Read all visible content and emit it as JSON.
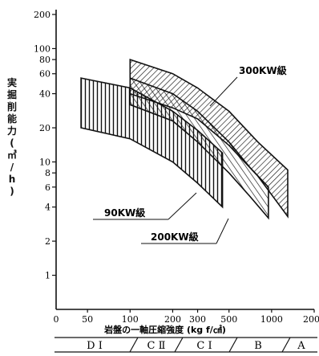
{
  "chart_data": {
    "type": "area",
    "title": "",
    "ylabel_chars": [
      "実",
      "掘",
      "削",
      "能",
      "力",
      "(",
      "㎥",
      "/",
      "h",
      ")"
    ],
    "xlabel": "岩盤の一軸圧縮強度 (kg f/㎠)",
    "x_scale": "log",
    "y_scale": "log",
    "xlim": [
      30,
      2000
    ],
    "ylim": [
      0.5,
      200
    ],
    "x_ticks": [
      {
        "v": 50,
        "label": "50"
      },
      {
        "v": 100,
        "label": "100"
      },
      {
        "v": 200,
        "label": "200"
      },
      {
        "v": 300,
        "label": "300"
      },
      {
        "v": 500,
        "label": "500"
      },
      {
        "v": 1000,
        "label": "1000"
      },
      {
        "v": 2000,
        "label": "2000"
      }
    ],
    "x_origin_label": "0",
    "y_ticks": [
      {
        "v": 1,
        "label": "1"
      },
      {
        "v": 2,
        "label": "2"
      },
      {
        "v": 4,
        "label": "4"
      },
      {
        "v": 6,
        "label": "6"
      },
      {
        "v": 8,
        "label": "8"
      },
      {
        "v": 10,
        "label": "10"
      },
      {
        "v": 20,
        "label": "20"
      },
      {
        "v": 40,
        "label": "40"
      },
      {
        "v": 60,
        "label": "60"
      },
      {
        "v": 80,
        "label": "80"
      },
      {
        "v": 100,
        "label": "100"
      },
      {
        "v": 200,
        "label": "200"
      }
    ],
    "series": [
      {
        "name": "90KW級",
        "hatch": "vertical",
        "x": [
          45,
          100,
          200,
          300,
          450
        ],
        "upper": [
          55,
          45,
          28,
          19,
          12
        ],
        "lower": [
          20,
          16,
          10,
          6.5,
          4
        ]
      },
      {
        "name": "200KW級",
        "hatch": "diagonal",
        "x": [
          100,
          200,
          300,
          500,
          700,
          950
        ],
        "upper": [
          55,
          40,
          28,
          15,
          9,
          6
        ],
        "lower": [
          32,
          23,
          15,
          8,
          5,
          3.2
        ]
      },
      {
        "name": "300KW級",
        "hatch": "diagonal",
        "x": [
          100,
          200,
          300,
          500,
          800,
          1300
        ],
        "upper": [
          80,
          60,
          45,
          28,
          15,
          8.5
        ],
        "lower": [
          40,
          30,
          24,
          14,
          7.5,
          3.3
        ]
      }
    ],
    "rock_classes": [
      "D I",
      "C Ⅱ",
      "C I",
      "B",
      "A"
    ]
  }
}
